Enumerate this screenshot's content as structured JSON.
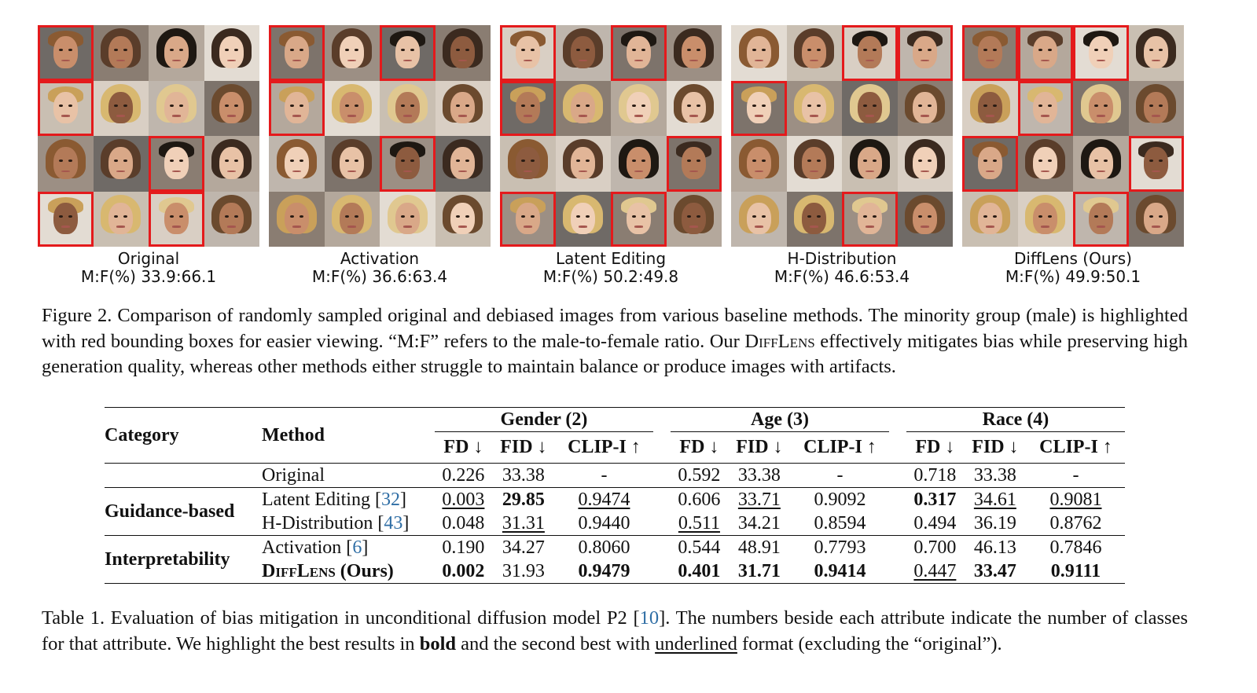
{
  "panels": [
    {
      "name": "Original",
      "ratio": "M:F(%) 33.9:66.1",
      "faces": [
        [
          1,
          0,
          0,
          0
        ],
        [
          1,
          0,
          0,
          0
        ],
        [
          0,
          0,
          1,
          0
        ],
        [
          1,
          0,
          1,
          0
        ]
      ]
    },
    {
      "name": "Activation",
      "ratio": "M:F(%) 36.6:63.4",
      "faces": [
        [
          1,
          0,
          1,
          0
        ],
        [
          1,
          0,
          0,
          0
        ],
        [
          0,
          0,
          1,
          0
        ],
        [
          0,
          0,
          0,
          0
        ]
      ]
    },
    {
      "name": "Latent Editing",
      "ratio": "M:F(%) 50.2:49.8",
      "faces": [
        [
          1,
          0,
          1,
          0
        ],
        [
          1,
          0,
          0,
          0
        ],
        [
          0,
          0,
          0,
          1
        ],
        [
          1,
          0,
          1,
          0
        ]
      ]
    },
    {
      "name": "H-Distribution",
      "ratio": "M:F(%) 46.6:53.4",
      "faces": [
        [
          0,
          0,
          1,
          1
        ],
        [
          1,
          0,
          0,
          0
        ],
        [
          0,
          0,
          0,
          0
        ],
        [
          0,
          0,
          1,
          0
        ]
      ]
    },
    {
      "name": "DiffLens (Ours)",
      "ratio": "M:F(%) 49.9:50.1",
      "faces": [
        [
          1,
          1,
          1,
          0
        ],
        [
          0,
          1,
          0,
          0
        ],
        [
          1,
          0,
          0,
          1
        ],
        [
          0,
          0,
          1,
          0
        ]
      ]
    }
  ],
  "figure_caption": {
    "part1": "Figure 2. Comparison of randomly sampled original and debiased images from various baseline methods. The minority group (male) is highlighted with red bounding boxes for easier viewing. “M:F” refers to the male-to-female ratio. Our ",
    "name": "DiffLens",
    "part2": " effectively mitigates bias while preserving high generation quality, whereas other methods either struggle to maintain balance or produce images with artifacts."
  },
  "table": {
    "col_category": "Category",
    "col_method": "Method",
    "groups": [
      "Gender (2)",
      "Age (3)",
      "Race (4)"
    ],
    "metrics": [
      "FD ↓",
      "FID ↓",
      "CLIP-I ↑"
    ],
    "rows": {
      "original": {
        "method": "Original",
        "values": [
          "0.226",
          "33.38",
          "-",
          "0.592",
          "33.38",
          "-",
          "0.718",
          "33.38",
          "-"
        ]
      },
      "latent": {
        "category": "Guidance-based",
        "method": "Latent Editing [",
        "ref": "32",
        "close": "]",
        "values": [
          "0.003",
          "29.85",
          "0.9474",
          "0.606",
          "33.71",
          "0.9092",
          "0.317",
          "34.61",
          "0.9081"
        ]
      },
      "hdist": {
        "method": "H-Distribution [",
        "ref": "43",
        "close": "]",
        "values": [
          "0.048",
          "31.31",
          "0.9440",
          "0.511",
          "34.21",
          "0.8594",
          "0.494",
          "36.19",
          "0.8762"
        ]
      },
      "activation": {
        "category": "Interpretability",
        "method": "Activation [",
        "ref": "6",
        "close": "]",
        "values": [
          "0.190",
          "34.27",
          "0.8060",
          "0.544",
          "48.91",
          "0.7793",
          "0.700",
          "46.13",
          "0.7846"
        ]
      },
      "difflens": {
        "method_sc": "DiffLens",
        "method_rest": " (Ours)",
        "values": [
          "0.002",
          "31.93",
          "0.9479",
          "0.401",
          "31.71",
          "0.9414",
          "0.447",
          "33.47",
          "0.9111"
        ]
      }
    }
  },
  "table_caption": {
    "part1": "Table 1. Evaluation of bias mitigation in unconditional diffusion model P2 [",
    "ref": "10",
    "part2": "]. The numbers beside each attribute indicate the number of classes for that attribute. We highlight the best results in ",
    "bold": "bold",
    "part3": " and the second best with ",
    "underlined": "underlined",
    "part4": " format (excluding the “original”)."
  },
  "colors": {
    "highlight_box": "#e41a1c",
    "citation": "#2f6ea5"
  }
}
